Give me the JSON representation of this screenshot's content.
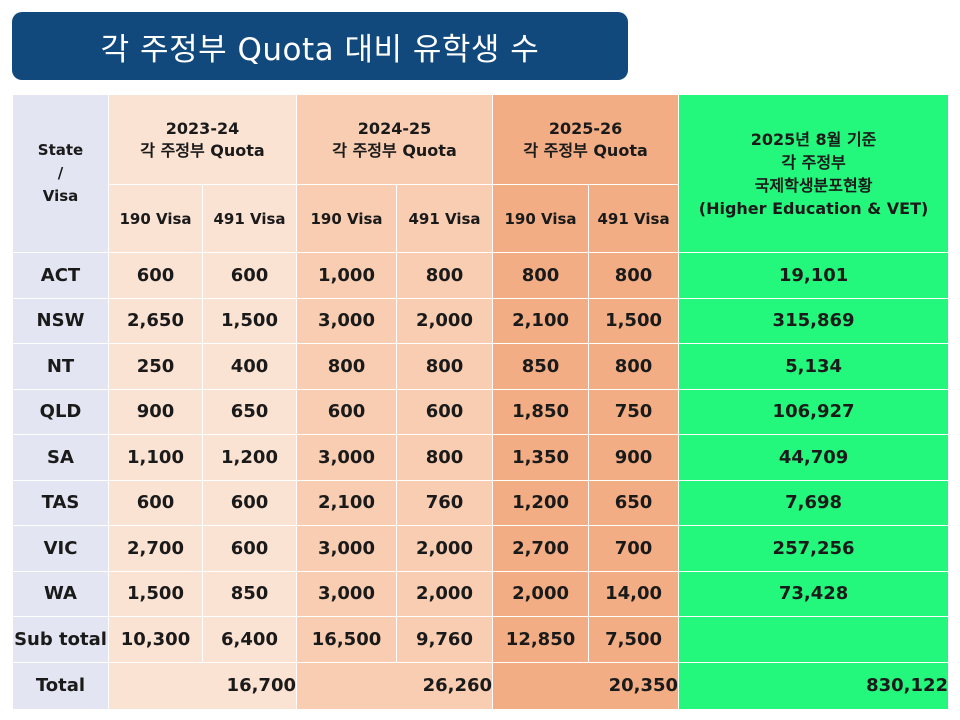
{
  "title": "각 주정부 Quota 대비 유학생 수",
  "header": {
    "state_lines": [
      "State",
      "/",
      "Visa"
    ],
    "periods": [
      {
        "year": "2023-24",
        "label": "각 주정부 Quota"
      },
      {
        "year": "2024-25",
        "label": "각 주정부 Quota"
      },
      {
        "year": "2025-26",
        "label": "각 주정부 Quota"
      }
    ],
    "sub_labels": [
      "190 Visa",
      "491 Visa",
      "190 Visa",
      "491 Visa",
      "190 Visa",
      "491 Visa"
    ],
    "students_lines": [
      "2025년 8월 기준",
      "각 주정부",
      "국제학생분포현황",
      "(Higher Education & VET)"
    ]
  },
  "rows": [
    {
      "state": "ACT",
      "values": [
        "600",
        "600",
        "1,000",
        "800",
        "800",
        "800"
      ],
      "students": "19,101"
    },
    {
      "state": "NSW",
      "values": [
        "2,650",
        "1,500",
        "3,000",
        "2,000",
        "2,100",
        "1,500"
      ],
      "students": "315,869"
    },
    {
      "state": "NT",
      "values": [
        "250",
        "400",
        "800",
        "800",
        "850",
        "800"
      ],
      "students": "5,134"
    },
    {
      "state": "QLD",
      "values": [
        "900",
        "650",
        "600",
        "600",
        "1,850",
        "750"
      ],
      "students": "106,927"
    },
    {
      "state": "SA",
      "values": [
        "1,100",
        "1,200",
        "3,000",
        "800",
        "1,350",
        "900"
      ],
      "students": "44,709"
    },
    {
      "state": "TAS",
      "values": [
        "600",
        "600",
        "2,100",
        "760",
        "1,200",
        "650"
      ],
      "students": "7,698"
    },
    {
      "state": "VIC",
      "values": [
        "2,700",
        "600",
        "3,000",
        "2,000",
        "2,700",
        "700"
      ],
      "students": "257,256"
    },
    {
      "state": "WA",
      "values": [
        "1,500",
        "850",
        "3,000",
        "2,000",
        "2,000",
        "14,00"
      ],
      "students": "73,428"
    }
  ],
  "subtotal": {
    "label": "Sub total",
    "values": [
      "10,300",
      "6,400",
      "16,500",
      "9,760",
      "12,850",
      "7,500"
    ],
    "students": ""
  },
  "total": {
    "label": "Total",
    "values": [
      "16,700",
      "26,260",
      "20,350"
    ],
    "students": "830,122"
  },
  "colors": {
    "title_bg": "#12497d",
    "state_col": "#e3e6f2",
    "period_2023": "#fbe3d4",
    "period_2024": "#f8cdb2",
    "period_2025": "#f2ad84",
    "students_col": "#23f77c"
  }
}
